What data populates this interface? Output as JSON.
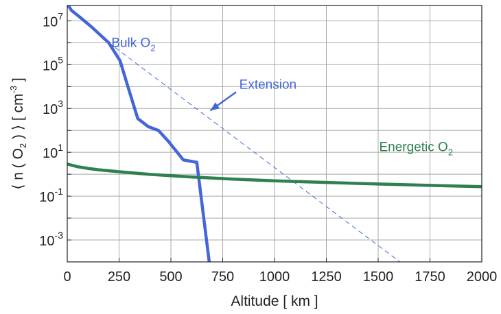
{
  "chart_data": {
    "type": "line",
    "xlabel": "Altitude [ km ]",
    "ylabel_parts": {
      "pre": "⟨ n ( O",
      "sub": "2",
      "mid": " ) ⟩ [ cm",
      "sup": "-3",
      "post": " ]"
    },
    "xlim": [
      0,
      2000
    ],
    "ylim_log10": [
      -4,
      7.7
    ],
    "y_scale": "log",
    "grid": true,
    "x_ticks": [
      0,
      250,
      500,
      750,
      1000,
      1250,
      1500,
      1750,
      2000
    ],
    "x_tick_labels": [
      "0",
      "250",
      "500",
      "750",
      "1000",
      "1250",
      "1500",
      "1750",
      "2000"
    ],
    "y_ticks_log10": [
      7,
      5,
      3,
      1,
      -1,
      -3
    ],
    "y_tick_labels": [
      {
        "base": "10",
        "exp": "7"
      },
      {
        "base": "10",
        "exp": "5"
      },
      {
        "base": "10",
        "exp": "3"
      },
      {
        "base": "10",
        "exp": "1"
      },
      {
        "base": "10",
        "exp": "-1"
      },
      {
        "base": "10",
        "exp": "-3"
      }
    ],
    "colors": {
      "bulk": "#4366d9",
      "energetic": "#2e8050",
      "extension": "#4366d9",
      "grid": "#a8a8a8",
      "axis": "#222222"
    },
    "series": [
      {
        "key": "bulk",
        "x": [
          0,
          20,
          60,
          120,
          200,
          255,
          290,
          340,
          390,
          440,
          490,
          560,
          625,
          685,
          700
        ],
        "y": [
          60000000,
          30000000,
          15000000,
          5000000,
          1000000,
          150000,
          12000,
          350,
          150,
          100,
          30,
          4.5,
          3.5,
          0.0001,
          1e-05
        ]
      },
      {
        "key": "energetic",
        "x": [
          0,
          50,
          100,
          150,
          250,
          400,
          600,
          800,
          1000,
          1250,
          1500,
          1750,
          2000
        ],
        "y": [
          2.9,
          2.2,
          1.85,
          1.6,
          1.3,
          0.98,
          0.75,
          0.6,
          0.5,
          0.42,
          0.36,
          0.31,
          0.27
        ]
      },
      {
        "key": "extension",
        "x": [
          200,
          1605
        ],
        "y": [
          1000000,
          0.0001
        ]
      }
    ],
    "annotations": {
      "bulk": {
        "text": "Bulk O",
        "sub": "2"
      },
      "energetic": {
        "text": "Energetic O",
        "sub": "2"
      },
      "extension": {
        "text": "Extension",
        "arrow_to": {
          "x": 690,
          "y": 800
        }
      }
    }
  }
}
